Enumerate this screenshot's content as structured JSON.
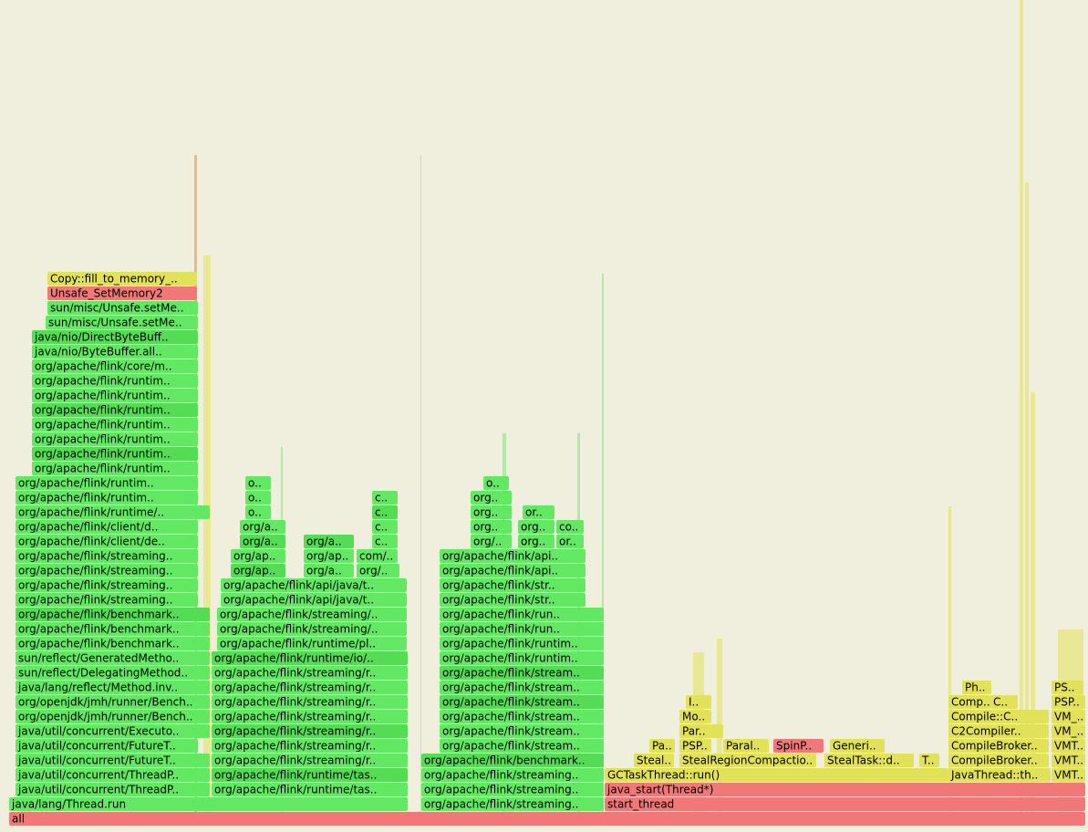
{
  "frames": [
    {
      "label": "all"
    },
    {
      "label": "java/lang/Thread.run"
    },
    {
      "label": "org/apache/flink/streaming.."
    },
    {
      "label": "start_thread"
    },
    {
      "label": "java/util/concurrent/ThreadP.."
    },
    {
      "label": "org/apache/flink/runtime/tas.."
    },
    {
      "label": "org/apache/flink/streaming.."
    },
    {
      "label": "java_start(Thread*)"
    },
    {
      "label": "java/util/concurrent/ThreadP.."
    },
    {
      "label": "org/apache/flink/runtime/tas.."
    },
    {
      "label": "org/apache/flink/streaming.."
    },
    {
      "label": "GCTaskThread::run()"
    },
    {
      "label": "JavaThread::th.."
    },
    {
      "label": "VMT.."
    },
    {
      "label": "java/util/concurrent/FutureT.."
    },
    {
      "label": "org/apache/flink/streaming/r.."
    },
    {
      "label": "org/apache/flink/benchmark.."
    },
    {
      "label": "Steal.."
    },
    {
      "label": "StealRegionCompactio.."
    },
    {
      "label": "StealTask::d.."
    },
    {
      "label": "T.."
    },
    {
      "label": "CompileBroker.."
    },
    {
      "label": "VMT.."
    },
    {
      "label": "java/util/concurrent/FutureT.."
    },
    {
      "label": "org/apache/flink/streaming/r.."
    },
    {
      "label": "org/apache/flink/stream.."
    },
    {
      "label": "Pa.."
    },
    {
      "label": "PSP.."
    },
    {
      "label": "Paral.."
    },
    {
      "label": "SpinP.."
    },
    {
      "label": "Generi.."
    },
    {
      "label": "CompileBroker.."
    },
    {
      "label": "VMT.."
    },
    {
      "label": "java/util/concurrent/Executo.."
    },
    {
      "label": "org/apache/flink/streaming/r.."
    },
    {
      "label": "org/apache/flink/stream.."
    },
    {
      "label": "Par.."
    },
    {
      "label": "C2Compiler.."
    },
    {
      "label": "VM_.."
    },
    {
      "label": "org/openjdk/jmh/runner/Bench.."
    },
    {
      "label": "org/apache/flink/streaming/r.."
    },
    {
      "label": "org/apache/flink/stream.."
    },
    {
      "label": "Mo.."
    },
    {
      "label": "Compile::C.."
    },
    {
      "label": "VM_.."
    },
    {
      "label": "org/openjdk/jmh/runner/Bench.."
    },
    {
      "label": "org/apache/flink/streaming/r.."
    },
    {
      "label": "org/apache/flink/stream.."
    },
    {
      "label": "I.."
    },
    {
      "label": "Comp.."
    },
    {
      "label": "C.."
    },
    {
      "label": "PSP.."
    },
    {
      "label": "java/lang/reflect/Method.inv.."
    },
    {
      "label": "org/apache/flink/streaming/r.."
    },
    {
      "label": "org/apache/flink/stream.."
    },
    {
      "label": "Ph.."
    },
    {
      "label": "PS.."
    },
    {
      "label": "sun/reflect/DelegatingMethod.."
    },
    {
      "label": "org/apache/flink/streaming/r.."
    },
    {
      "label": "org/apache/flink/stream.."
    },
    {
      "label": "sun/reflect/GeneratedMetho.."
    },
    {
      "label": "org/apache/flink/runtime/io/.."
    },
    {
      "label": "org/apache/flink/runtim.."
    },
    {
      "label": "org/apache/flink/benchmark.."
    },
    {
      "label": "org/apache/flink/runtime/pl.."
    },
    {
      "label": "org/apache/flink/runtim.."
    },
    {
      "label": "org/apache/flink/benchmark.."
    },
    {
      "label": "org/apache/flink/streaming/.."
    },
    {
      "label": "org/apache/flink/run.."
    },
    {
      "label": "org/apache/flink/benchmark.."
    },
    {
      "label": "org/apache/flink/streaming/.."
    },
    {
      "label": "org/apache/flink/run.."
    },
    {
      "label": "org/apache/flink/streaming.."
    },
    {
      "label": "org/apache/flink/api/java/t.."
    },
    {
      "label": "org/apache/flink/str.."
    },
    {
      "label": "org/apache/flink/streaming.."
    },
    {
      "label": "org/apache/flink/api/java/t.."
    },
    {
      "label": "org/apache/flink/str.."
    },
    {
      "label": "org/apache/flink/streaming.."
    },
    {
      "label": "org/ap.."
    },
    {
      "label": "org/a.."
    },
    {
      "label": "org/.."
    },
    {
      "label": "org/apache/flink/api.."
    },
    {
      "label": "org/apache/flink/streaming.."
    },
    {
      "label": "org/ap.."
    },
    {
      "label": "org/ap.."
    },
    {
      "label": "com/.."
    },
    {
      "label": "org/apache/flink/api.."
    },
    {
      "label": "org/apache/flink/client/de.."
    },
    {
      "label": "org/a.."
    },
    {
      "label": "org/a.."
    },
    {
      "label": "c.."
    },
    {
      "label": "org/.."
    },
    {
      "label": "org.."
    },
    {
      "label": "or.."
    },
    {
      "label": "org/apache/flink/client/d.."
    },
    {
      "label": "org/a.."
    },
    {
      "label": "c.."
    },
    {
      "label": "org.."
    },
    {
      "label": "org.."
    },
    {
      "label": "co.."
    },
    {
      "label": "org/apache/flink/runtime/.."
    },
    {
      "label": "o.."
    },
    {
      "label": "c.."
    },
    {
      "label": "org.."
    },
    {
      "label": "or.."
    },
    {
      "label": "org/apache/flink/runtim.."
    },
    {
      "label": "o.."
    },
    {
      "label": "c.."
    },
    {
      "label": "org.."
    },
    {
      "label": "org/apache/flink/runtim.."
    },
    {
      "label": "o.."
    },
    {
      "label": "o.."
    },
    {
      "label": "org/apache/flink/runtim.."
    },
    {
      "label": "org/apache/flink/runtim.."
    },
    {
      "label": "org/apache/flink/runtim.."
    },
    {
      "label": "org/apache/flink/runtim.."
    },
    {
      "label": "org/apache/flink/runtim.."
    },
    {
      "label": "org/apache/flink/runtim.."
    },
    {
      "label": "org/apache/flink/runtim.."
    },
    {
      "label": "org/apache/flink/core/m.."
    },
    {
      "label": "java/nio/ByteBuffer.all.."
    },
    {
      "label": "java/nio/DirectByteBuff.."
    },
    {
      "label": "sun/misc/Unsafe.setMe.."
    },
    {
      "label": "sun/misc/Unsafe.setMe.."
    },
    {
      "label": "Unsafe_SetMemory2"
    },
    {
      "label": "Copy::fill_to_memory_.."
    }
  ]
}
